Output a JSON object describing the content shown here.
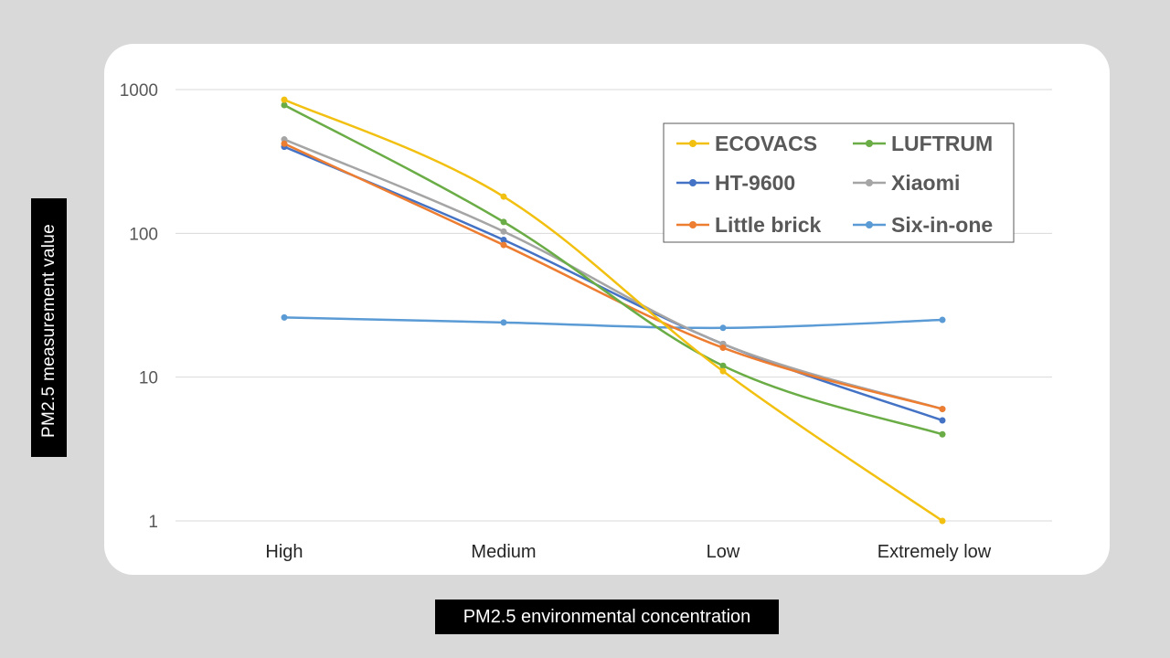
{
  "chart_data": {
    "type": "line",
    "title": "",
    "xlabel": "PM2.5 environmental concentration",
    "ylabel": "PM2.5 measurement value",
    "yscale": "log",
    "ylim": [
      1,
      1000
    ],
    "yticks": [
      "1",
      "10",
      "100",
      "1000"
    ],
    "categories": [
      "High",
      "Medium",
      "Low",
      "Extremely low"
    ],
    "grid": true,
    "legend_position": "top-right",
    "series": [
      {
        "name": "ECOVACS",
        "color": "#f2c010",
        "values": [
          850,
          180,
          11,
          1
        ]
      },
      {
        "name": "LUFTRUM",
        "color": "#6aac45",
        "values": [
          780,
          120,
          12,
          4
        ]
      },
      {
        "name": "HT-9600",
        "color": "#4472c4",
        "values": [
          400,
          90,
          17,
          5
        ]
      },
      {
        "name": "Xiaomi",
        "color": "#a5a5a5",
        "values": [
          450,
          103,
          17,
          6
        ]
      },
      {
        "name": "Little brick",
        "color": "#ed7d31",
        "values": [
          420,
          83,
          16,
          6
        ]
      },
      {
        "name": "Six-in-one",
        "color": "#5b9bd5",
        "values": [
          26,
          24,
          22,
          25
        ]
      }
    ]
  }
}
